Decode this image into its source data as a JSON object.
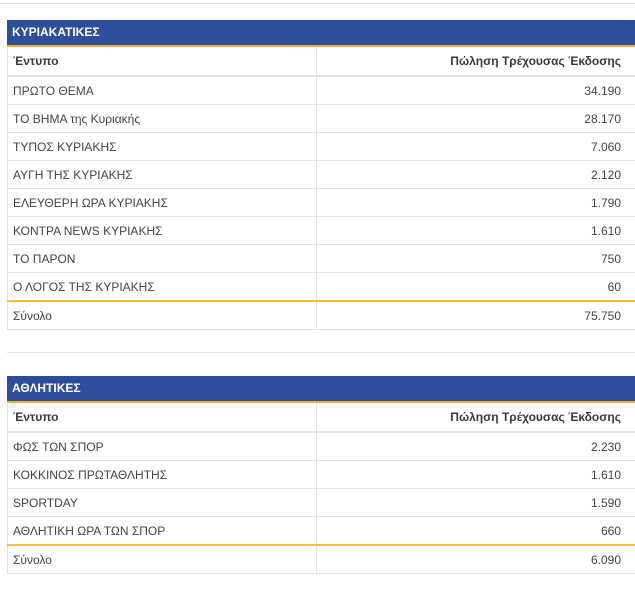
{
  "sunday": {
    "title": "ΚΥΡΙΑΚΑΤΙΚΕΣ",
    "col_title": "Έντυπο",
    "col_sales": "Πώληση Τρέχουσας Έκδοσης",
    "rows": [
      {
        "name": "ΠΡΩΤΟ ΘΕΜΑ",
        "value": "34.190"
      },
      {
        "name": "ΤΟ ΒΗΜΑ της Κυριακής",
        "value": "28.170"
      },
      {
        "name": "ΤΥΠΟΣ ΚΥΡΙΑΚΗΣ",
        "value": "7.060"
      },
      {
        "name": "ΑΥΓΗ ΤΗΣ ΚΥΡΙΑΚΗΣ",
        "value": "2.120"
      },
      {
        "name": "ΕΛΕΥΘΕΡΗ ΩΡΑ ΚΥΡΙΑΚΗΣ",
        "value": "1.790"
      },
      {
        "name": "ΚΟΝΤΡΑ NEWS ΚΥΡΙΑΚΗΣ",
        "value": "1.610"
      },
      {
        "name": "ΤΟ ΠΑΡΟΝ",
        "value": "750"
      },
      {
        "name": "Ο ΛΟΓΟΣ ΤΗΣ ΚΥΡΙΑΚΗΣ",
        "value": "60"
      }
    ],
    "total_label": "Σύνολο",
    "total_value": "75.750"
  },
  "sports": {
    "title": "ΑΘΛΗΤΙΚΕΣ",
    "col_title": "Έντυπο",
    "col_sales": "Πώληση Τρέχουσας Έκδοσης",
    "rows": [
      {
        "name": "ΦΩΣ ΤΩΝ ΣΠΟΡ",
        "value": "2.230"
      },
      {
        "name": "ΚΟΚΚΙΝΟΣ ΠΡΩΤΑΘΛΗΤΗΣ",
        "value": "1.610"
      },
      {
        "name": "SPORTDAY",
        "value": "1.590"
      },
      {
        "name": "ΑΘΛΗΤΙΚΗ ΩΡΑ ΤΩΝ ΣΠΟΡ",
        "value": "660"
      }
    ],
    "total_label": "Σύνολο",
    "total_value": "6.090"
  },
  "colors": {
    "header_bg": "#2c4e9b",
    "accent": "#f2b02f",
    "border": "#e3e3e3"
  }
}
